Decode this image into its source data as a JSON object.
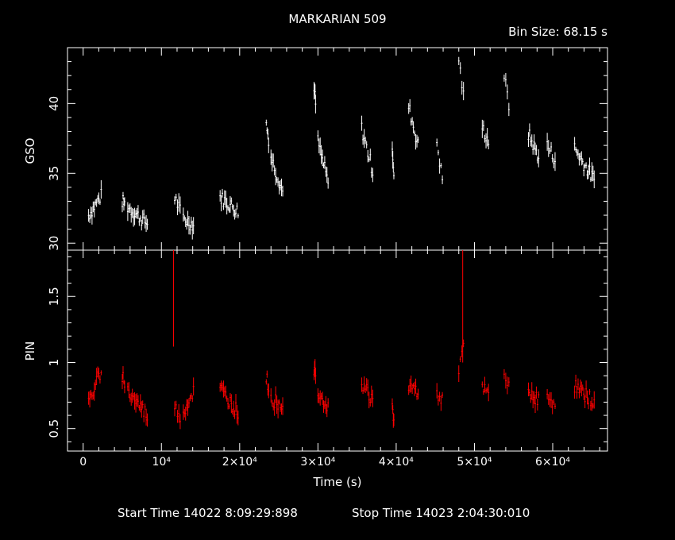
{
  "title": "MARKARIAN 509",
  "bin_size": "Bin Size: 68.15 s",
  "footer": {
    "start": "Start Time 14022  8:09:29:898",
    "stop": "Stop Time 14023  2:04:30:010"
  },
  "colors": {
    "background": "#000000",
    "axes": "#ffffff",
    "gso": "#ffffff",
    "pin": "#ff0000"
  },
  "chart_data": [
    {
      "type": "scatter",
      "panel": "top",
      "ylabel": "GSO",
      "xlim": [
        -2000,
        67000
      ],
      "ylim": [
        29.5,
        44
      ],
      "yticks": [
        30,
        35,
        40
      ],
      "error_bars": true,
      "series": [
        {
          "segments": [
            {
              "x0": 700,
              "x1": 2300,
              "y0": 32.0,
              "y1": 33.4
            },
            {
              "x0": 5000,
              "x1": 5300,
              "y0": 33.0,
              "y1": 32.8
            },
            {
              "x0": 5700,
              "x1": 8200,
              "y0": 32.6,
              "y1": 31.4
            },
            {
              "x0": 11700,
              "x1": 12400,
              "y0": 33.3,
              "y1": 32.3
            },
            {
              "x0": 12800,
              "x1": 14100,
              "y0": 31.8,
              "y1": 31.3
            },
            {
              "x0": 17500,
              "x1": 19800,
              "y0": 33.3,
              "y1": 32.3
            },
            {
              "x0": 23400,
              "x1": 23700,
              "y0": 38.5,
              "y1": 37.5
            },
            {
              "x0": 24000,
              "x1": 25500,
              "y0": 36.2,
              "y1": 33.7
            },
            {
              "x0": 29500,
              "x1": 29700,
              "y0": 41.3,
              "y1": 40.0
            },
            {
              "x0": 30000,
              "x1": 31300,
              "y0": 37.3,
              "y1": 34.3
            },
            {
              "x0": 35600,
              "x1": 37000,
              "y0": 38.2,
              "y1": 35.2
            },
            {
              "x0": 39500,
              "x1": 39700,
              "y0": 37.0,
              "y1": 34.5
            },
            {
              "x0": 41600,
              "x1": 42800,
              "y0": 39.8,
              "y1": 37.0
            },
            {
              "x0": 45200,
              "x1": 45900,
              "y0": 37.3,
              "y1": 34.5
            },
            {
              "x0": 48000,
              "x1": 48600,
              "y0": 43.2,
              "y1": 40.5
            },
            {
              "x0": 51000,
              "x1": 51800,
              "y0": 38.3,
              "y1": 37.3
            },
            {
              "x0": 53800,
              "x1": 54400,
              "y0": 42.0,
              "y1": 39.8
            },
            {
              "x0": 56900,
              "x1": 58200,
              "y0": 37.8,
              "y1": 36.2
            },
            {
              "x0": 59300,
              "x1": 60300,
              "y0": 37.0,
              "y1": 36.0
            },
            {
              "x0": 62800,
              "x1": 65300,
              "y0": 36.8,
              "y1": 34.5
            }
          ]
        }
      ]
    },
    {
      "type": "scatter",
      "panel": "bottom",
      "ylabel": "PIN",
      "xlabel": "Time (s)",
      "xlim": [
        -2000,
        67000
      ],
      "ylim": [
        0.33,
        1.85
      ],
      "yticks": [
        0.5,
        1,
        1.5
      ],
      "xticks": [
        {
          "value": 0,
          "label": "0"
        },
        {
          "value": 10000,
          "label": "10⁴"
        },
        {
          "value": 20000,
          "label": "2×10⁴"
        },
        {
          "value": 30000,
          "label": "3×10⁴"
        },
        {
          "value": 40000,
          "label": "4×10⁴"
        },
        {
          "value": 50000,
          "label": "5×10⁴"
        },
        {
          "value": 60000,
          "label": "6×10⁴"
        }
      ],
      "error_bars": true,
      "series": [
        {
          "segments": [
            {
              "x0": 700,
              "x1": 2300,
              "y0": 0.68,
              "y1": 0.95
            },
            {
              "x0": 5000,
              "x1": 5300,
              "y0": 0.9,
              "y1": 0.85
            },
            {
              "x0": 5700,
              "x1": 8200,
              "y0": 0.78,
              "y1": 0.6
            },
            {
              "x0": 11700,
              "x1": 12400,
              "y0": 0.65,
              "y1": 0.6
            },
            {
              "x0": 12800,
              "x1": 14100,
              "y0": 0.62,
              "y1": 0.78
            },
            {
              "x0": 17500,
              "x1": 19800,
              "y0": 0.8,
              "y1": 0.62
            },
            {
              "x0": 23400,
              "x1": 23700,
              "y0": 0.88,
              "y1": 0.82
            },
            {
              "x0": 24000,
              "x1": 25500,
              "y0": 0.72,
              "y1": 0.68
            },
            {
              "x0": 29500,
              "x1": 29700,
              "y0": 0.95,
              "y1": 0.92
            },
            {
              "x0": 30000,
              "x1": 31300,
              "y0": 0.8,
              "y1": 0.65
            },
            {
              "x0": 35600,
              "x1": 37000,
              "y0": 0.85,
              "y1": 0.72
            },
            {
              "x0": 39500,
              "x1": 39700,
              "y0": 0.65,
              "y1": 0.55
            },
            {
              "x0": 41600,
              "x1": 42800,
              "y0": 0.82,
              "y1": 0.78
            },
            {
              "x0": 45200,
              "x1": 45900,
              "y0": 0.78,
              "y1": 0.72
            },
            {
              "x0": 48000,
              "x1": 48600,
              "y0": 0.95,
              "y1": 1.1
            },
            {
              "x0": 51000,
              "x1": 51800,
              "y0": 0.8,
              "y1": 0.75
            },
            {
              "x0": 53800,
              "x1": 54400,
              "y0": 0.9,
              "y1": 0.8
            },
            {
              "x0": 56900,
              "x1": 58200,
              "y0": 0.78,
              "y1": 0.72
            },
            {
              "x0": 59300,
              "x1": 60300,
              "y0": 0.72,
              "y1": 0.7
            },
            {
              "x0": 62800,
              "x1": 65300,
              "y0": 0.82,
              "y1": 0.7
            }
          ],
          "spikes": [
            {
              "x": 11550,
              "ylow": 1.12,
              "yhigh": 1.85
            },
            {
              "x": 48500,
              "ylow": 1.0,
              "yhigh": 1.85
            }
          ]
        }
      ]
    }
  ]
}
